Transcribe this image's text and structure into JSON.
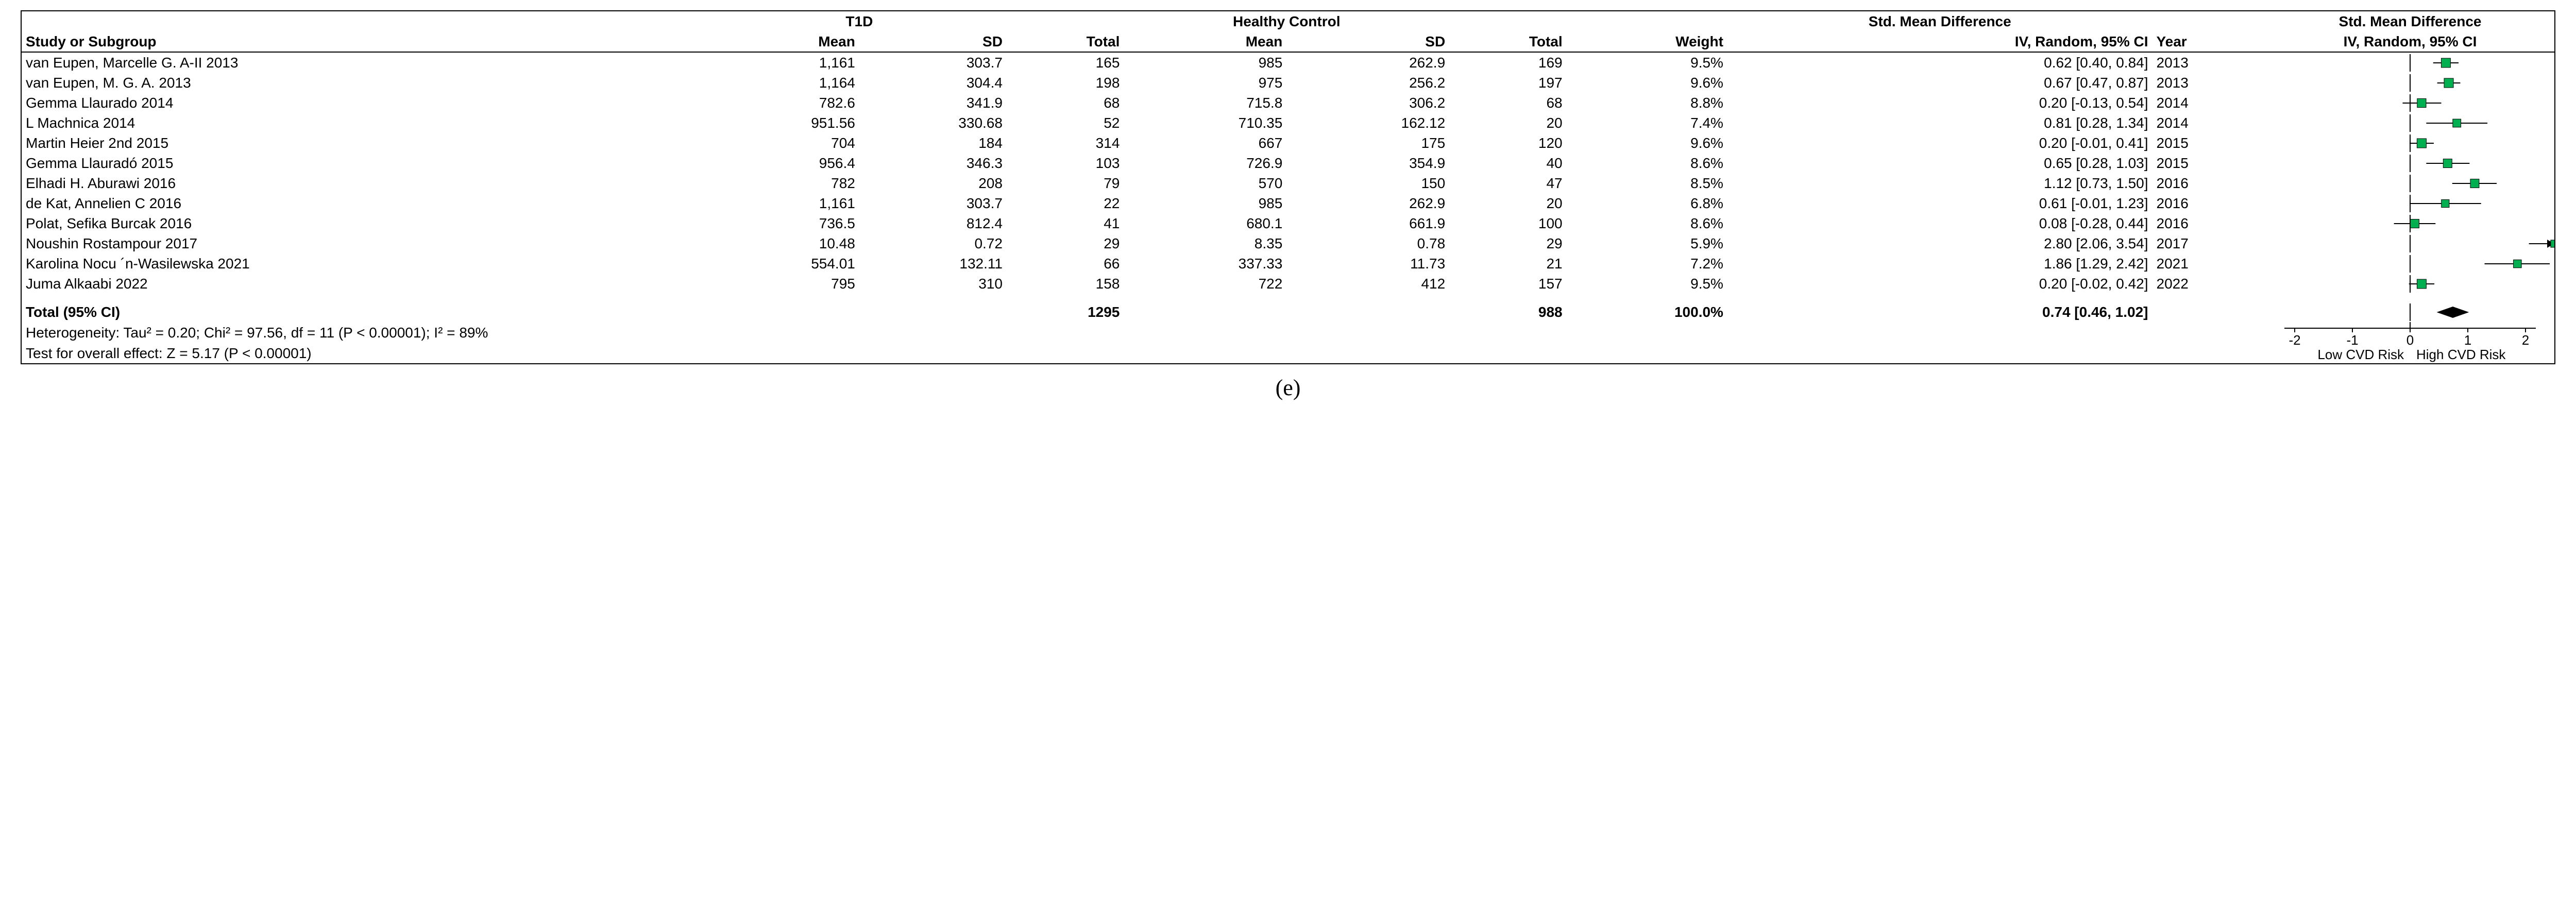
{
  "figure_label": "(e)",
  "plot": {
    "xmin": -2.5,
    "xmax": 2.5,
    "zero": 0,
    "ticks": [
      -2,
      -1,
      0,
      1,
      2
    ],
    "axis_label_left": "Low CVD Risk",
    "axis_label_right": "High CVD Risk",
    "marker_color": "#00b050",
    "marker_border": "#000000",
    "line_color": "#000000",
    "diamond_color": "#000000",
    "axis_color": "#000000",
    "font_size_pt": 21
  },
  "headers": {
    "group1": "T1D",
    "group2": "Healthy Control",
    "smd_header": "Std. Mean Difference",
    "smd_plot_header": "Std. Mean Difference",
    "study": "Study or Subgroup",
    "mean": "Mean",
    "sd": "SD",
    "total": "Total",
    "weight": "Weight",
    "ci": "IV, Random, 95% CI",
    "year": "Year",
    "plot_ci": "IV, Random, 95% CI"
  },
  "rows": [
    {
      "study": "van Eupen, Marcelle G. A-II 2013",
      "t1_mean": "1,161",
      "t1_sd": "303.7",
      "t1_n": "165",
      "hc_mean": "985",
      "hc_sd": "262.9",
      "hc_n": "169",
      "weight": "9.5%",
      "ci": "0.62 [0.40, 0.84]",
      "year": "2013",
      "pt": 0.62,
      "lo": 0.4,
      "hi": 0.84,
      "w": 9.5
    },
    {
      "study": "van Eupen, M. G. A. 2013",
      "t1_mean": "1,164",
      "t1_sd": "304.4",
      "t1_n": "198",
      "hc_mean": "975",
      "hc_sd": "256.2",
      "hc_n": "197",
      "weight": "9.6%",
      "ci": "0.67 [0.47, 0.87]",
      "year": "2013",
      "pt": 0.67,
      "lo": 0.47,
      "hi": 0.87,
      "w": 9.6
    },
    {
      "study": "Gemma Llaurado 2014",
      "t1_mean": "782.6",
      "t1_sd": "341.9",
      "t1_n": "68",
      "hc_mean": "715.8",
      "hc_sd": "306.2",
      "hc_n": "68",
      "weight": "8.8%",
      "ci": "0.20 [-0.13, 0.54]",
      "year": "2014",
      "pt": 0.2,
      "lo": -0.13,
      "hi": 0.54,
      "w": 8.8
    },
    {
      "study": "L Machnica 2014",
      "t1_mean": "951.56",
      "t1_sd": "330.68",
      "t1_n": "52",
      "hc_mean": "710.35",
      "hc_sd": "162.12",
      "hc_n": "20",
      "weight": "7.4%",
      "ci": "0.81 [0.28, 1.34]",
      "year": "2014",
      "pt": 0.81,
      "lo": 0.28,
      "hi": 1.34,
      "w": 7.4
    },
    {
      "study": "Martin Heier 2nd 2015",
      "t1_mean": "704",
      "t1_sd": "184",
      "t1_n": "314",
      "hc_mean": "667",
      "hc_sd": "175",
      "hc_n": "120",
      "weight": "9.6%",
      "ci": "0.20 [-0.01, 0.41]",
      "year": "2015",
      "pt": 0.2,
      "lo": -0.01,
      "hi": 0.41,
      "w": 9.6
    },
    {
      "study": "Gemma Llauradó 2015",
      "t1_mean": "956.4",
      "t1_sd": "346.3",
      "t1_n": "103",
      "hc_mean": "726.9",
      "hc_sd": "354.9",
      "hc_n": "40",
      "weight": "8.6%",
      "ci": "0.65 [0.28, 1.03]",
      "year": "2015",
      "pt": 0.65,
      "lo": 0.28,
      "hi": 1.03,
      "w": 8.6
    },
    {
      "study": "Elhadi H. Aburawi 2016",
      "t1_mean": "782",
      "t1_sd": "208",
      "t1_n": "79",
      "hc_mean": "570",
      "hc_sd": "150",
      "hc_n": "47",
      "weight": "8.5%",
      "ci": "1.12 [0.73, 1.50]",
      "year": "2016",
      "pt": 1.12,
      "lo": 0.73,
      "hi": 1.5,
      "w": 8.5
    },
    {
      "study": "de Kat, Annelien C 2016",
      "t1_mean": "1,161",
      "t1_sd": "303.7",
      "t1_n": "22",
      "hc_mean": "985",
      "hc_sd": "262.9",
      "hc_n": "20",
      "weight": "6.8%",
      "ci": "0.61 [-0.01, 1.23]",
      "year": "2016",
      "pt": 0.61,
      "lo": -0.01,
      "hi": 1.23,
      "w": 6.8
    },
    {
      "study": "Polat, Sefika Burcak 2016",
      "t1_mean": "736.5",
      "t1_sd": "812.4",
      "t1_n": "41",
      "hc_mean": "680.1",
      "hc_sd": "661.9",
      "hc_n": "100",
      "weight": "8.6%",
      "ci": "0.08 [-0.28, 0.44]",
      "year": "2016",
      "pt": 0.08,
      "lo": -0.28,
      "hi": 0.44,
      "w": 8.6
    },
    {
      "study": "Noushin Rostampour 2017",
      "t1_mean": "10.48",
      "t1_sd": "0.72",
      "t1_n": "29",
      "hc_mean": "8.35",
      "hc_sd": "0.78",
      "hc_n": "29",
      "weight": "5.9%",
      "ci": "2.80 [2.06, 3.54]",
      "year": "2017",
      "pt": 2.8,
      "lo": 2.06,
      "hi": 3.54,
      "w": 5.9,
      "arrow_right": true
    },
    {
      "study": "Karolina Nocu ´n-Wasilewska 2021",
      "t1_mean": "554.01",
      "t1_sd": "132.11",
      "t1_n": "66",
      "hc_mean": "337.33",
      "hc_sd": "11.73",
      "hc_n": "21",
      "weight": "7.2%",
      "ci": "1.86 [1.29, 2.42]",
      "year": "2021",
      "pt": 1.86,
      "lo": 1.29,
      "hi": 2.42,
      "w": 7.2
    },
    {
      "study": "Juma Alkaabi 2022",
      "t1_mean": "795",
      "t1_sd": "310",
      "t1_n": "158",
      "hc_mean": "722",
      "hc_sd": "412",
      "hc_n": "157",
      "weight": "9.5%",
      "ci": "0.20 [-0.02, 0.42]",
      "year": "2022",
      "pt": 0.2,
      "lo": -0.02,
      "hi": 0.42,
      "w": 9.5
    }
  ],
  "total": {
    "label": "Total (95% CI)",
    "t1_n": "1295",
    "hc_n": "988",
    "weight": "100.0%",
    "ci": "0.74 [0.46, 1.02]",
    "pt": 0.74,
    "lo": 0.46,
    "hi": 1.02
  },
  "footer": {
    "heterogeneity": "Heterogeneity: Tau² = 0.20; Chi² = 97.56, df = 11 (P < 0.00001); I² = 89%",
    "overall": "Test for overall effect: Z = 5.17 (P < 0.00001)"
  }
}
